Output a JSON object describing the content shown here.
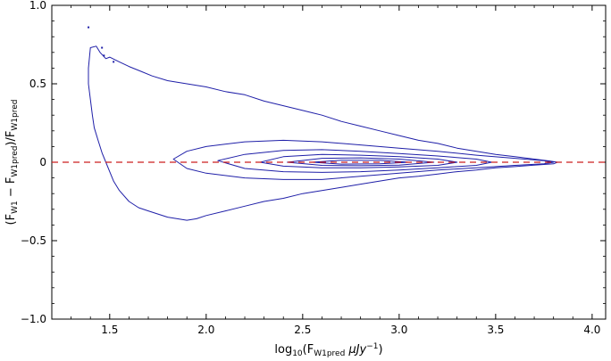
{
  "chart_data": {
    "type": "contour",
    "title": "",
    "xlabel": {
      "prefix": "log",
      "base": "10",
      "paren_open": "(F",
      "sub": "W1pred",
      "mid": " μJy",
      "sup": "−1",
      "suffix": ")"
    },
    "ylabel": {
      "p1": "(F",
      "s1": "W1",
      "p2": " − F",
      "s2": "W1pred",
      "p3": ")/F",
      "s3": "W1pred"
    },
    "xlim": [
      1.2,
      4.07
    ],
    "ylim": [
      -1.0,
      1.0
    ],
    "x_ticks": [
      {
        "value": 1.5,
        "label": "1.5"
      },
      {
        "value": 2.0,
        "label": "2.0"
      },
      {
        "value": 2.5,
        "label": "2.5"
      },
      {
        "value": 3.0,
        "label": "3.0"
      },
      {
        "value": 3.5,
        "label": "3.5"
      },
      {
        "value": 4.0,
        "label": "4.0"
      }
    ],
    "y_ticks": [
      {
        "value": 1.0,
        "label": "1.0"
      },
      {
        "value": 0.5,
        "label": "0.5"
      },
      {
        "value": 0.0,
        "label": "0"
      },
      {
        "value": -0.5,
        "label": "−0.5"
      },
      {
        "value": -1.0,
        "label": "−1.0"
      }
    ],
    "reference_line": {
      "y": 0.0,
      "color": "#cc1f1f",
      "style": "dashed"
    },
    "contour_color": "#1f1fa8",
    "contours": [
      {
        "name": "level-1",
        "points": [
          [
            1.4,
            0.73
          ],
          [
            1.43,
            0.74
          ],
          [
            1.45,
            0.7
          ],
          [
            1.48,
            0.66
          ],
          [
            1.5,
            0.67
          ],
          [
            1.55,
            0.64
          ],
          [
            1.6,
            0.61
          ],
          [
            1.66,
            0.58
          ],
          [
            1.72,
            0.55
          ],
          [
            1.8,
            0.52
          ],
          [
            1.9,
            0.5
          ],
          [
            2.0,
            0.48
          ],
          [
            2.1,
            0.45
          ],
          [
            2.2,
            0.43
          ],
          [
            2.3,
            0.39
          ],
          [
            2.4,
            0.36
          ],
          [
            2.5,
            0.33
          ],
          [
            2.6,
            0.3
          ],
          [
            2.7,
            0.26
          ],
          [
            2.8,
            0.23
          ],
          [
            2.9,
            0.2
          ],
          [
            3.0,
            0.17
          ],
          [
            3.1,
            0.14
          ],
          [
            3.2,
            0.12
          ],
          [
            3.3,
            0.09
          ],
          [
            3.4,
            0.07
          ],
          [
            3.5,
            0.05
          ],
          [
            3.6,
            0.035
          ],
          [
            3.7,
            0.02
          ],
          [
            3.78,
            0.008
          ],
          [
            3.82,
            0.0
          ],
          [
            3.8,
            -0.01
          ],
          [
            3.7,
            -0.018
          ],
          [
            3.6,
            -0.028
          ],
          [
            3.5,
            -0.035
          ],
          [
            3.4,
            -0.05
          ],
          [
            3.3,
            -0.06
          ],
          [
            3.2,
            -0.075
          ],
          [
            3.1,
            -0.09
          ],
          [
            3.0,
            -0.1
          ],
          [
            2.9,
            -0.12
          ],
          [
            2.8,
            -0.14
          ],
          [
            2.7,
            -0.16
          ],
          [
            2.6,
            -0.18
          ],
          [
            2.5,
            -0.2
          ],
          [
            2.4,
            -0.23
          ],
          [
            2.3,
            -0.25
          ],
          [
            2.2,
            -0.28
          ],
          [
            2.1,
            -0.31
          ],
          [
            2.0,
            -0.34
          ],
          [
            1.95,
            -0.36
          ],
          [
            1.9,
            -0.37
          ],
          [
            1.85,
            -0.36
          ],
          [
            1.8,
            -0.35
          ],
          [
            1.75,
            -0.33
          ],
          [
            1.7,
            -0.31
          ],
          [
            1.65,
            -0.29
          ],
          [
            1.6,
            -0.25
          ],
          [
            1.55,
            -0.18
          ],
          [
            1.52,
            -0.12
          ],
          [
            1.5,
            -0.06
          ],
          [
            1.48,
            0.0
          ],
          [
            1.46,
            0.06
          ],
          [
            1.44,
            0.14
          ],
          [
            1.42,
            0.22
          ],
          [
            1.41,
            0.3
          ],
          [
            1.4,
            0.4
          ],
          [
            1.39,
            0.5
          ],
          [
            1.39,
            0.6
          ],
          [
            1.4,
            0.73
          ]
        ]
      },
      {
        "name": "level-2",
        "points": [
          [
            1.83,
            0.02
          ],
          [
            1.9,
            0.07
          ],
          [
            2.0,
            0.1
          ],
          [
            2.2,
            0.13
          ],
          [
            2.4,
            0.14
          ],
          [
            2.6,
            0.13
          ],
          [
            2.8,
            0.11
          ],
          [
            3.0,
            0.09
          ],
          [
            3.2,
            0.07
          ],
          [
            3.4,
            0.045
          ],
          [
            3.6,
            0.025
          ],
          [
            3.75,
            0.01
          ],
          [
            3.8,
            0.0
          ],
          [
            3.75,
            -0.01
          ],
          [
            3.6,
            -0.02
          ],
          [
            3.4,
            -0.035
          ],
          [
            3.2,
            -0.05
          ],
          [
            3.0,
            -0.07
          ],
          [
            2.8,
            -0.09
          ],
          [
            2.6,
            -0.11
          ],
          [
            2.4,
            -0.11
          ],
          [
            2.2,
            -0.1
          ],
          [
            2.0,
            -0.07
          ],
          [
            1.9,
            -0.04
          ],
          [
            1.83,
            0.02
          ]
        ]
      },
      {
        "name": "level-3",
        "points": [
          [
            2.06,
            0.01
          ],
          [
            2.2,
            0.05
          ],
          [
            2.4,
            0.075
          ],
          [
            2.6,
            0.08
          ],
          [
            2.8,
            0.07
          ],
          [
            3.0,
            0.055
          ],
          [
            3.2,
            0.04
          ],
          [
            3.4,
            0.02
          ],
          [
            3.48,
            0.0
          ],
          [
            3.4,
            -0.02
          ],
          [
            3.2,
            -0.035
          ],
          [
            3.0,
            -0.05
          ],
          [
            2.8,
            -0.06
          ],
          [
            2.6,
            -0.065
          ],
          [
            2.4,
            -0.06
          ],
          [
            2.2,
            -0.04
          ],
          [
            2.06,
            0.01
          ]
        ]
      },
      {
        "name": "level-4",
        "points": [
          [
            2.28,
            0.0
          ],
          [
            2.4,
            0.035
          ],
          [
            2.6,
            0.05
          ],
          [
            2.8,
            0.045
          ],
          [
            3.0,
            0.035
          ],
          [
            3.2,
            0.02
          ],
          [
            3.3,
            0.0
          ],
          [
            3.2,
            -0.02
          ],
          [
            3.0,
            -0.03
          ],
          [
            2.8,
            -0.035
          ],
          [
            2.6,
            -0.035
          ],
          [
            2.4,
            -0.025
          ],
          [
            2.28,
            0.0
          ]
        ]
      },
      {
        "name": "level-5",
        "points": [
          [
            2.42,
            0.0
          ],
          [
            2.6,
            0.025
          ],
          [
            2.8,
            0.028
          ],
          [
            3.0,
            0.02
          ],
          [
            3.18,
            0.0
          ],
          [
            3.0,
            -0.018
          ],
          [
            2.8,
            -0.022
          ],
          [
            2.6,
            -0.02
          ],
          [
            2.42,
            0.0
          ]
        ]
      },
      {
        "name": "level-6",
        "points": [
          [
            2.55,
            0.0
          ],
          [
            2.7,
            0.013
          ],
          [
            2.9,
            0.012
          ],
          [
            3.05,
            0.0
          ],
          [
            2.9,
            -0.01
          ],
          [
            2.7,
            -0.012
          ],
          [
            2.55,
            0.0
          ]
        ]
      }
    ],
    "outliers": [
      [
        1.39,
        0.86
      ],
      [
        1.46,
        0.73
      ],
      [
        1.47,
        0.68
      ],
      [
        1.52,
        0.64
      ]
    ]
  }
}
